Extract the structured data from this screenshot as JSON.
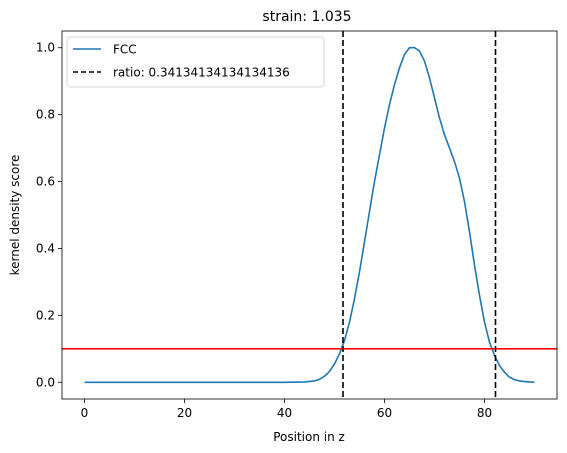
{
  "chart_data": {
    "type": "line",
    "title": "strain: 1.035",
    "xlabel": "Position in z",
    "ylabel": "kernel density score",
    "xlim": [
      -4.5,
      94.5
    ],
    "ylim": [
      -0.05,
      1.05
    ],
    "xticks": [
      0,
      20,
      40,
      60,
      80
    ],
    "yticks": [
      0.0,
      0.2,
      0.4,
      0.6,
      0.8,
      1.0
    ],
    "xtick_labels": [
      "0",
      "20",
      "40",
      "60",
      "80"
    ],
    "ytick_labels": [
      "0.0",
      "0.2",
      "0.4",
      "0.6",
      "0.8",
      "1.0"
    ],
    "grid": false,
    "legend_position": "top-left",
    "series": [
      {
        "name": "FCC",
        "color": "#1f77b4",
        "x": [
          0,
          10,
          20,
          30,
          40,
          44,
          46,
          47,
          48,
          49,
          50,
          51,
          52,
          53,
          54,
          55,
          56,
          57,
          58,
          59,
          60,
          61,
          62,
          63,
          64,
          65,
          66,
          67,
          68,
          69,
          70,
          71,
          72,
          73,
          74,
          75,
          76,
          77,
          78,
          79,
          80,
          81,
          82,
          83,
          84,
          85,
          86,
          87,
          88,
          89,
          90
        ],
        "values": [
          0,
          0,
          0,
          0,
          0,
          0.001,
          0.004,
          0.009,
          0.018,
          0.032,
          0.055,
          0.085,
          0.125,
          0.18,
          0.25,
          0.33,
          0.42,
          0.51,
          0.6,
          0.68,
          0.76,
          0.83,
          0.89,
          0.94,
          0.98,
          1.0,
          1.0,
          0.99,
          0.96,
          0.91,
          0.85,
          0.79,
          0.74,
          0.7,
          0.66,
          0.61,
          0.54,
          0.45,
          0.35,
          0.26,
          0.18,
          0.12,
          0.08,
          0.05,
          0.03,
          0.015,
          0.008,
          0.004,
          0.002,
          0.001,
          0.0
        ]
      },
      {
        "name": "ratio: 0.34134134134134136",
        "color": "#000000",
        "style": "dashed",
        "vlines": [
          51.7,
          82.2
        ]
      }
    ],
    "hline": {
      "y": 0.1,
      "color": "#ff0000"
    }
  }
}
